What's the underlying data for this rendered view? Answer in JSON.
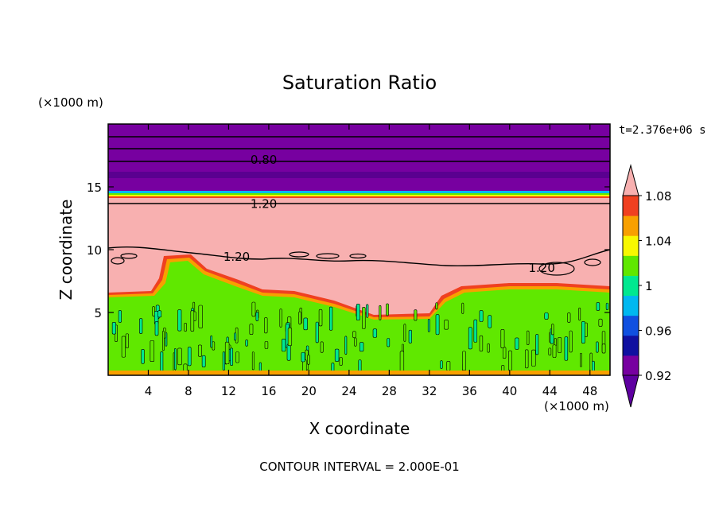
{
  "chart_data": {
    "type": "heatmap",
    "title": "Saturation Ratio",
    "xlabel": "X coordinate",
    "ylabel": "Z coordinate",
    "x_unit": "(×1000 m)",
    "z_unit": "(×1000 m)",
    "time_label": "t=2.376e+06 s",
    "footer": "CONTOUR INTERVAL = 2.000E-01",
    "xlim": [
      0,
      50
    ],
    "zlim": [
      0,
      20
    ],
    "x_ticks": [
      4,
      8,
      12,
      16,
      20,
      24,
      28,
      32,
      36,
      40,
      44,
      48
    ],
    "x_tick_labels": [
      "4",
      "8",
      "12",
      "16",
      "20",
      "24",
      "28",
      "32",
      "36",
      "40",
      "44",
      "48"
    ],
    "z_ticks": [
      5,
      10,
      15
    ],
    "z_tick_labels": [
      "5",
      "10",
      "15"
    ],
    "colorbar": {
      "levels": [
        0.9,
        0.92,
        0.94,
        0.96,
        0.98,
        1.0,
        1.02,
        1.04,
        1.06,
        1.08,
        1.1
      ],
      "colors": [
        "#5e00a0",
        "#7700a0",
        "#1010a0",
        "#1050e0",
        "#00b8f0",
        "#00e890",
        "#60e800",
        "#f8f800",
        "#f8a000",
        "#f04020",
        "#f8b0b0"
      ],
      "tick_values": [
        0.92,
        0.96,
        1.0,
        1.04,
        1.08
      ],
      "tick_labels": [
        "0.92",
        "0.96",
        "1",
        "1.04",
        "1.08"
      ],
      "extend": "both"
    },
    "contour_labels": [
      {
        "text": "0.80",
        "x": 15.5,
        "z": 17.2
      },
      {
        "text": "1.20",
        "x": 15.5,
        "z": 13.7
      },
      {
        "text": "1.20",
        "x": 12.8,
        "z": 9.5
      },
      {
        "text": "1.20",
        "x": 43.2,
        "z": 8.6
      }
    ],
    "regions": [
      {
        "description_value": 0.9,
        "z_range": [
          15.2,
          20
        ]
      },
      {
        "description_value": 1.1,
        "z_range": [
          6.5,
          14.2
        ]
      },
      {
        "description_value": 1.0,
        "z_range": [
          0,
          6.5
        ]
      }
    ]
  }
}
